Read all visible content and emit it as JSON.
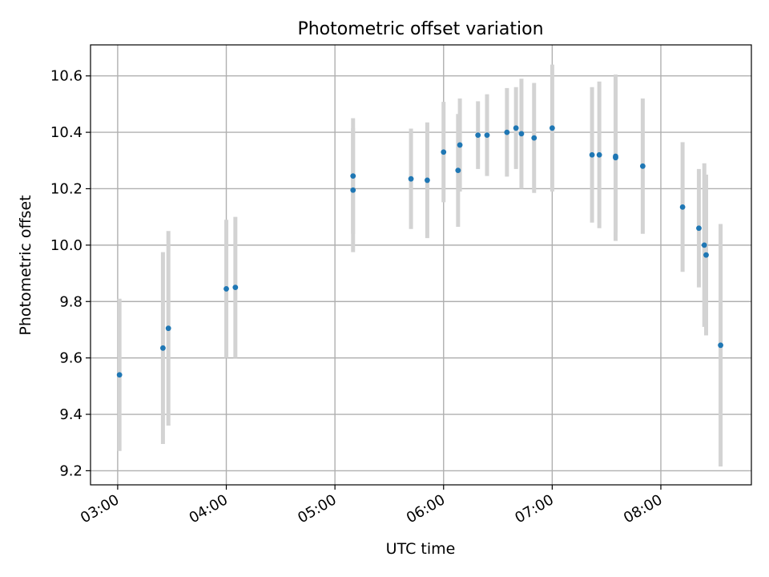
{
  "chart_data": {
    "type": "scatter",
    "title": "Photometric offset variation",
    "xlabel": "UTC time",
    "ylabel": "Photometric offset",
    "x_unit": "UTC time (HH:MM)",
    "xlim": [
      "02:45",
      "08:50"
    ],
    "ylim": [
      9.15,
      10.71
    ],
    "x_ticks": [
      "03:00",
      "04:00",
      "05:00",
      "06:00",
      "07:00",
      "08:00"
    ],
    "y_ticks": [
      9.2,
      9.4,
      9.6,
      9.8,
      10.0,
      10.2,
      10.4,
      10.6
    ],
    "grid": true,
    "legend": "none",
    "colors": {
      "point": "#1f77b4",
      "errorbar": "#d3d3d3",
      "grid": "#b0b0b0"
    },
    "points": [
      {
        "x": "03:01",
        "y": 9.54,
        "err": 0.27
      },
      {
        "x": "03:25",
        "y": 9.635,
        "err": 0.34
      },
      {
        "x": "03:28",
        "y": 9.705,
        "err": 0.345
      },
      {
        "x": "04:00",
        "y": 9.845,
        "err": 0.245
      },
      {
        "x": "04:05",
        "y": 9.85,
        "err": 0.25
      },
      {
        "x": "05:10",
        "y": 10.195,
        "err": 0.22
      },
      {
        "x": "05:10",
        "y": 10.245,
        "err": 0.205
      },
      {
        "x": "05:42",
        "y": 10.235,
        "err": 0.178
      },
      {
        "x": "05:51",
        "y": 10.23,
        "err": 0.205
      },
      {
        "x": "06:00",
        "y": 10.33,
        "err": 0.178
      },
      {
        "x": "06:08",
        "y": 10.265,
        "err": 0.2
      },
      {
        "x": "06:09",
        "y": 10.355,
        "err": 0.165
      },
      {
        "x": "06:19",
        "y": 10.39,
        "err": 0.12
      },
      {
        "x": "06:24",
        "y": 10.39,
        "err": 0.145
      },
      {
        "x": "06:35",
        "y": 10.4,
        "err": 0.157
      },
      {
        "x": "06:40",
        "y": 10.415,
        "err": 0.145
      },
      {
        "x": "06:43",
        "y": 10.395,
        "err": 0.195
      },
      {
        "x": "06:50",
        "y": 10.38,
        "err": 0.195
      },
      {
        "x": "07:00",
        "y": 10.415,
        "err": 0.225
      },
      {
        "x": "07:22",
        "y": 10.32,
        "err": 0.24
      },
      {
        "x": "07:26",
        "y": 10.32,
        "err": 0.26
      },
      {
        "x": "07:35",
        "y": 10.31,
        "err": 0.295
      },
      {
        "x": "07:35",
        "y": 10.315,
        "err": 0.27
      },
      {
        "x": "07:50",
        "y": 10.28,
        "err": 0.24
      },
      {
        "x": "08:12",
        "y": 10.135,
        "err": 0.23
      },
      {
        "x": "08:21",
        "y": 10.06,
        "err": 0.21
      },
      {
        "x": "08:24",
        "y": 10.0,
        "err": 0.29
      },
      {
        "x": "08:25",
        "y": 9.965,
        "err": 0.285
      },
      {
        "x": "08:33",
        "y": 9.645,
        "err": 0.43
      }
    ]
  }
}
